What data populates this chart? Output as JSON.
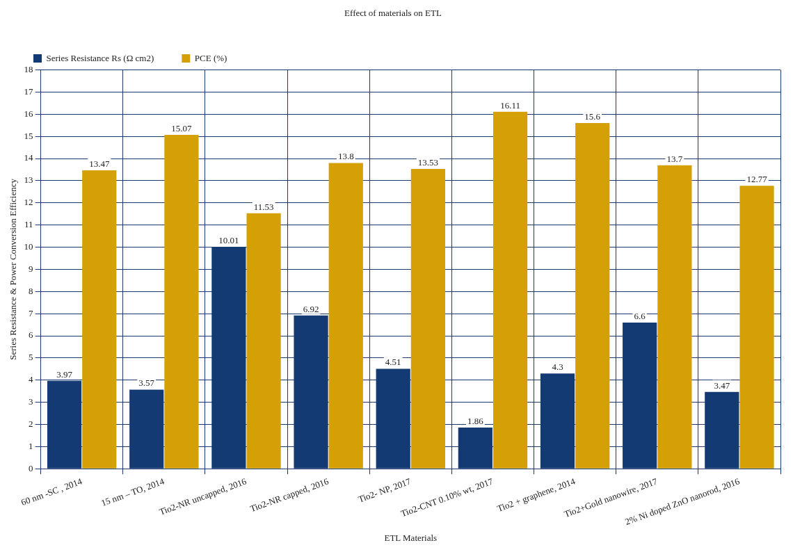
{
  "chart_data": {
    "type": "bar",
    "title": "Effect of materials on ETL",
    "xlabel": "ETL Materials",
    "ylabel": "Series Resistance & Power Conversion Efficiency",
    "categories": [
      "60 nm -SC , 2014",
      "15 nm – TO, 2014",
      "Tio2-NR uncapped, 2016",
      "Tio2-NR capped, 2016",
      "Tio2- NP, 2017",
      "Tio2-CNT 0.10% wt, 2017",
      "Tio2 + graphene, 2014",
      "Tio2+Gold nanowire, 2017",
      "2% Ni doped ZnO nanorod, 2016"
    ],
    "series": [
      {
        "name": "Series Resistance Rs (Ω cm2)",
        "color": "#133a73",
        "values": [
          3.97,
          3.57,
          10.01,
          6.92,
          4.51,
          1.86,
          4.3,
          6.6,
          3.47
        ]
      },
      {
        "name": "PCE (%)",
        "color": "#d4a005",
        "values": [
          13.47,
          15.07,
          11.53,
          13.8,
          13.53,
          16.11,
          15.6,
          13.7,
          12.77
        ]
      }
    ],
    "ylim": [
      0,
      18
    ],
    "yticks": [
      0,
      1,
      2,
      3,
      4,
      5,
      6,
      7,
      8,
      9,
      10,
      11,
      12,
      13,
      14,
      15,
      16,
      17,
      18
    ],
    "grid": true,
    "legend": "top left",
    "data_labels": true
  }
}
